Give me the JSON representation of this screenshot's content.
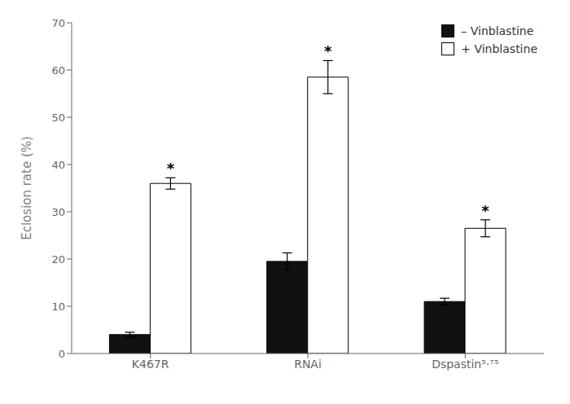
{
  "chart_data": {
    "type": "bar",
    "ylabel": "Eclosion rate (%)",
    "categories": [
      "K467R",
      "RNAi",
      "Dspastin⁵·⁷⁵"
    ],
    "series": [
      {
        "name": "– Vinblastine",
        "color": "#111111",
        "values": [
          4.0,
          19.5,
          11.0
        ],
        "errors": [
          0.5,
          1.8,
          0.7
        ]
      },
      {
        "name": "+ Vinblastine",
        "color": "#ffffff",
        "values": [
          36.0,
          58.5,
          26.5
        ],
        "errors": [
          1.2,
          3.5,
          1.8
        ]
      }
    ],
    "annotations": [
      {
        "text": "*",
        "series": "+ Vinblastine",
        "category": "K467R"
      },
      {
        "text": "*",
        "series": "+ Vinblastine",
        "category": "RNAi"
      },
      {
        "text": "*",
        "series": "+ Vinblastine",
        "category": "Dspastin⁵·⁷⁵"
      }
    ],
    "ylim": [
      0,
      70
    ],
    "yticks": [
      0,
      10,
      20,
      30,
      40,
      50,
      60,
      70
    ],
    "grid": false,
    "legend": "upper right"
  }
}
